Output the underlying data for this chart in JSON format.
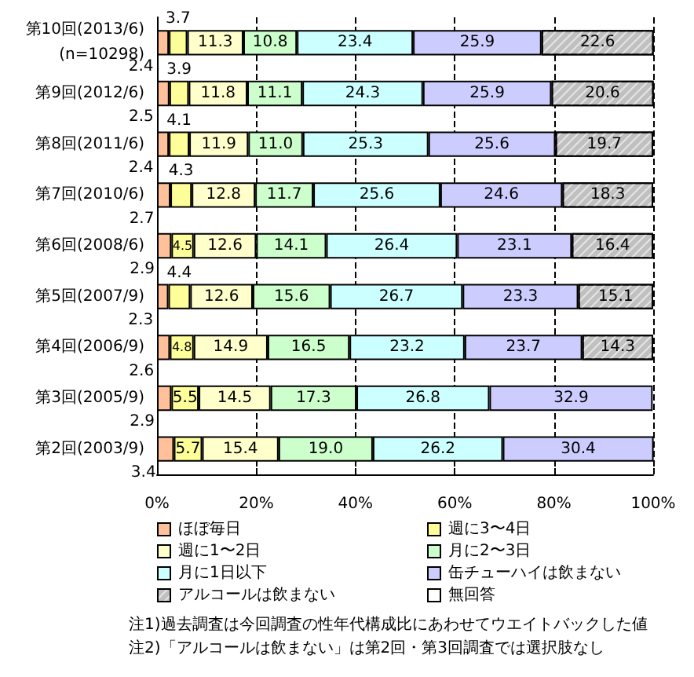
{
  "chart_data": {
    "type": "bar",
    "orientation": "horizontal",
    "stacked": true,
    "grid": "x",
    "legend": "bottom",
    "categories": [
      "第10回(2013/6)\n(n=10298)",
      "第9回(2012/6)",
      "第8回(2011/6)",
      "第7回(2010/6)",
      "第6回(2008/6)",
      "第5回(2007/9)",
      "第4回(2006/9)",
      "第3回(2005/9)",
      "第2回(2003/9)"
    ],
    "xlim": [
      0,
      100
    ],
    "xticks": [
      {
        "value": 0,
        "label": "0%"
      },
      {
        "value": 20,
        "label": "20%"
      },
      {
        "value": 40,
        "label": "40%"
      },
      {
        "value": 60,
        "label": "60%"
      },
      {
        "value": 80,
        "label": "80%"
      },
      {
        "value": 100,
        "label": "100%"
      }
    ],
    "series": [
      {
        "name": "ほぼ毎日",
        "color": "#ffc09a",
        "values": [
          2.4,
          2.5,
          2.4,
          2.7,
          2.9,
          2.3,
          2.6,
          2.9,
          3.4
        ],
        "value_labels": [
          "2.4",
          "2.5",
          "2.4",
          "2.7",
          "2.9",
          "2.3",
          "2.6",
          "2.9",
          "3.4"
        ]
      },
      {
        "name": "週に3〜4日",
        "color": "#ffff99",
        "values": [
          3.7,
          3.9,
          4.1,
          4.3,
          4.5,
          4.4,
          4.8,
          5.5,
          5.7
        ],
        "value_labels": [
          "3.7",
          "3.9",
          "4.1",
          "4.3",
          "4.5",
          "4.4",
          "4.8",
          "5.5",
          "5.7"
        ]
      },
      {
        "name": "週に1〜2日",
        "color": "#ffffcc",
        "values": [
          11.3,
          11.8,
          11.9,
          12.8,
          12.6,
          12.6,
          14.9,
          14.5,
          15.4
        ],
        "value_labels": [
          "11.3",
          "11.8",
          "11.9",
          "12.8",
          "12.6",
          "12.6",
          "14.9",
          "14.5",
          "15.4"
        ]
      },
      {
        "name": "月に2〜3日",
        "color": "#ccffcc",
        "values": [
          10.8,
          11.1,
          11.0,
          11.7,
          14.1,
          15.6,
          16.5,
          17.3,
          19.0
        ],
        "value_labels": [
          "10.8",
          "11.1",
          "11.0",
          "11.7",
          "14.1",
          "15.6",
          "16.5",
          "17.3",
          "19.0"
        ]
      },
      {
        "name": "月に1日以下",
        "color": "#ccffff",
        "values": [
          23.4,
          24.3,
          25.3,
          25.6,
          26.4,
          26.7,
          23.2,
          26.8,
          26.2
        ],
        "value_labels": [
          "23.4",
          "24.3",
          "25.3",
          "25.6",
          "26.4",
          "26.7",
          "23.2",
          "26.8",
          "26.2"
        ]
      },
      {
        "name": "缶チューハイは飲まない",
        "color": "#ccccff",
        "values": [
          25.9,
          25.9,
          25.6,
          24.6,
          23.1,
          23.3,
          23.7,
          32.9,
          30.4
        ],
        "value_labels": [
          "25.9",
          "25.9",
          "25.6",
          "24.6",
          "23.1",
          "23.3",
          "23.7",
          "32.9",
          "30.4"
        ]
      },
      {
        "name": "アルコールは飲まない",
        "color": "#c0c0c0",
        "values": [
          22.6,
          20.6,
          19.7,
          18.3,
          16.4,
          15.1,
          14.3,
          null,
          null
        ],
        "value_labels": [
          "22.6",
          "20.6",
          "19.7",
          "18.3",
          "16.4",
          "15.1",
          "14.3",
          null,
          null
        ]
      },
      {
        "name": "無回答",
        "color": "#ffffff",
        "values": [
          null,
          null,
          null,
          null,
          null,
          null,
          null,
          null,
          null
        ]
      }
    ],
    "annotations": [
      "注1)過去調査は今回調査の性年代構成比にあわせてウエイトバックした値",
      "注2)「アルコールは飲まない」は第2回・第3回調査では選択肢なし"
    ]
  }
}
